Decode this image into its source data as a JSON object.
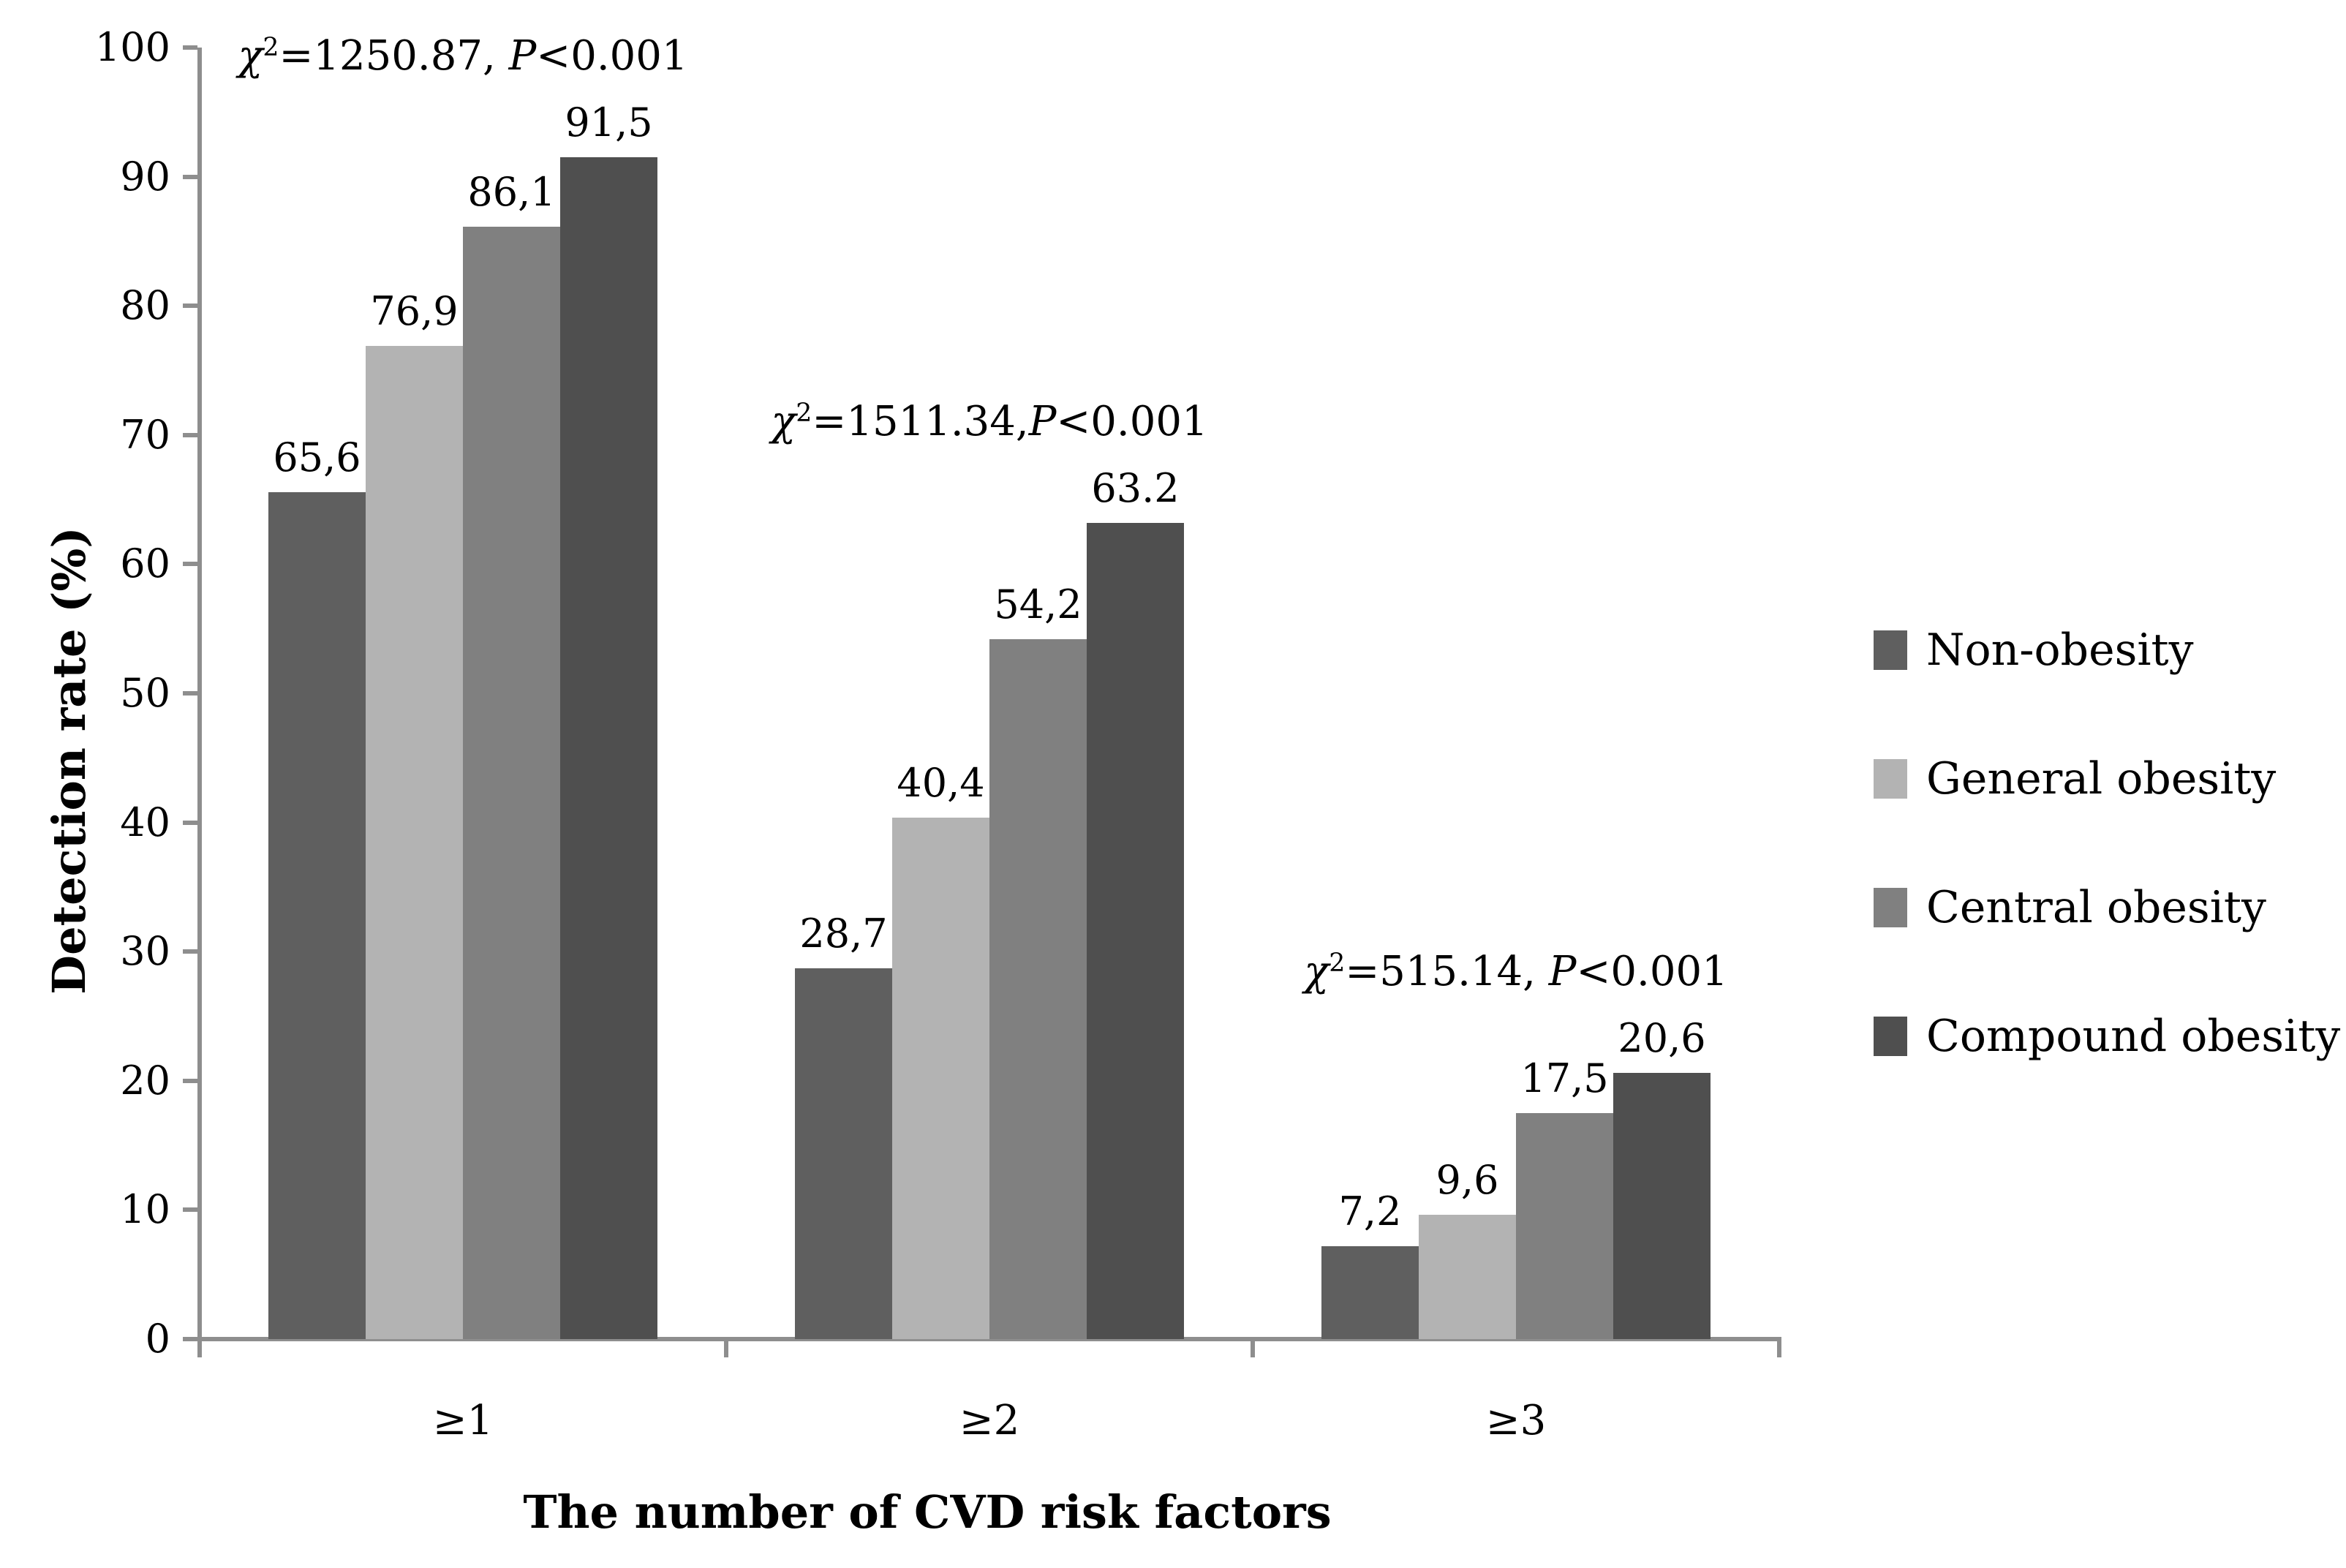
{
  "figure": {
    "background": "#ffffff"
  },
  "chart_data": {
    "type": "bar",
    "title": "",
    "xlabel": "The number of CVD risk factors",
    "ylabel": "Detection rate (%)",
    "ylim": [
      0,
      100
    ],
    "ytick_step": 10,
    "yticks": [
      0,
      10,
      20,
      30,
      40,
      50,
      60,
      70,
      80,
      90,
      100
    ],
    "grid": false,
    "axis_color": "#8e8e8e",
    "categories": [
      "≥1",
      "≥2",
      "≥3"
    ],
    "series": [
      {
        "name": "Non-obesity",
        "color": "#5f5f5f",
        "values": [
          65.6,
          28.7,
          7.2
        ],
        "value_labels": [
          "65,6",
          "28,7",
          "7,2"
        ]
      },
      {
        "name": "General obesity",
        "color": "#b3b3b3",
        "values": [
          76.9,
          40.4,
          9.6
        ],
        "value_labels": [
          "76,9",
          "40,4",
          "9,6"
        ]
      },
      {
        "name": "Central obesity",
        "color": "#808080",
        "values": [
          86.1,
          54.2,
          17.5
        ],
        "value_labels": [
          "86,1",
          "54,2",
          "17,5"
        ]
      },
      {
        "name": "Compound obesity",
        "color": "#4f4f4f",
        "values": [
          91.5,
          63.2,
          20.6
        ],
        "value_labels": [
          "91,5",
          "63.2",
          "20,6"
        ]
      }
    ],
    "annotations": [
      {
        "group": 0,
        "text": "χ²=1250.87, P<0.001"
      },
      {
        "group": 1,
        "text": "χ²=1511.34,P<0.001"
      },
      {
        "group": 2,
        "text": "χ²=515.14, P<0.001"
      }
    ],
    "legend": {
      "position": "right",
      "items": [
        "Non-obesity",
        "General obesity",
        "Central obesity",
        "Compound obesity"
      ]
    }
  }
}
